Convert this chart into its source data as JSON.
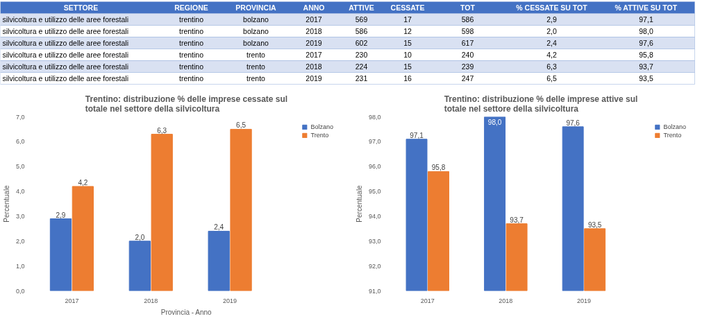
{
  "chart_data": [
    {
      "type": "other",
      "annotations": [
        "SETTORE",
        "REGIONE",
        "PROVINCIA",
        "ANNO",
        "ATTIVE",
        "CESSATE",
        "TOT",
        "% CESSATE SU TOT",
        "% ATTIVE SU TOT",
        "silvicoltura e utilizzo delle aree forestali",
        "trentino",
        "bolzano",
        "2017",
        "569",
        "17",
        "586",
        "2,9",
        "97,1",
        "silvicoltura e utilizzo delle aree forestali",
        "trentino",
        "bolzano",
        "2018",
        "586",
        "12",
        "598",
        "2,0",
        "98,0",
        "silvicoltura e utilizzo delle aree forestali",
        "trentino",
        "bolzano",
        "2019",
        "602",
        "15",
        "617",
        "2,4",
        "97,6",
        "silvicoltura e utilizzo delle aree forestali",
        "trentino",
        "trento",
        "2017",
        "230",
        "10",
        "240",
        "4,2",
        "95,8",
        "silvicoltura e utilizzo delle aree forestali",
        "trentino",
        "trento",
        "2018",
        "224",
        "15",
        "239",
        "6,3",
        "93,7",
        "silvicoltura e utilizzo delle aree forestali",
        "trentino",
        "trento",
        "2019",
        "231",
        "16",
        "247",
        "6,5",
        "93,5"
      ]
    },
    {
      "type": "bar",
      "title": "Trentino: distribuzione % delle imprese cessate sul totale nel settore della silvicoltura",
      "xlabel": "Provincia - Anno",
      "ylabel": "Percentuale",
      "categories": [
        "2017",
        "2018",
        "2019"
      ],
      "series": [
        {
          "name": "Bolzano",
          "color": "#4472c4",
          "values": [
            2.9,
            2.0,
            2.4
          ],
          "value_labels": [
            "2,9",
            "2,0",
            "2,4"
          ]
        },
        {
          "name": "Trento",
          "color": "#ed7d31",
          "values": [
            4.2,
            6.3,
            6.5
          ],
          "value_labels": [
            "4,2",
            "6,3",
            "6,5"
          ]
        }
      ],
      "ylim": [
        0,
        7
      ],
      "yticks": [
        {
          "value": 0,
          "label": "0,0"
        },
        {
          "value": 1,
          "label": "1,0"
        },
        {
          "value": 2,
          "label": "2,0"
        },
        {
          "value": 3,
          "label": "3,0"
        },
        {
          "value": 4,
          "label": "4,0"
        },
        {
          "value": 5,
          "label": "5,0"
        },
        {
          "value": 6,
          "label": "6,0"
        },
        {
          "value": 7,
          "label": "7,0"
        }
      ],
      "legend": "right",
      "grid": false
    },
    {
      "type": "bar",
      "title": "Trentino: distribuzione % delle imprese attive sul totale nel settore della silvicoltura",
      "ylabel": "Percentuale",
      "categories": [
        "2017",
        "2018",
        "2019"
      ],
      "series": [
        {
          "name": "Bolzano",
          "color": "#4472c4",
          "values": [
            97.1,
            98.0,
            97.6
          ],
          "value_labels": [
            "97,1",
            "98,0",
            "97,6"
          ]
        },
        {
          "name": "Trento",
          "color": "#ed7d31",
          "values": [
            95.8,
            93.7,
            93.5
          ],
          "value_labels": [
            "95,8",
            "93,7",
            "93,5"
          ]
        }
      ],
      "ylim": [
        91,
        98
      ],
      "yticks": [
        {
          "value": 91,
          "label": "91,0"
        },
        {
          "value": 92,
          "label": "92,0"
        },
        {
          "value": 93,
          "label": "93,0"
        },
        {
          "value": 94,
          "label": "94,0"
        },
        {
          "value": 95,
          "label": "95,0"
        },
        {
          "value": 96,
          "label": "96,0"
        },
        {
          "value": 97,
          "label": "97,0"
        },
        {
          "value": 98,
          "label": "98,0"
        }
      ],
      "legend": "right",
      "grid": false
    }
  ]
}
